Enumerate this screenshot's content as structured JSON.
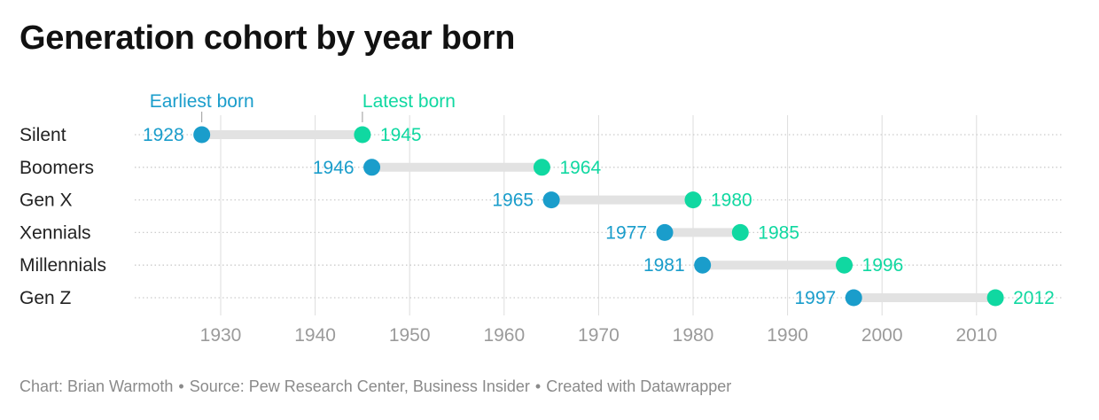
{
  "title": "Generation cohort by year born",
  "footer": {
    "chart_credit": "Chart: Brian Warmoth",
    "source": "Source: Pew Research Center, Business Insider",
    "created_with": "Created with Datawrapper",
    "separator": "•"
  },
  "colors": {
    "earliest": "#1a9dcb",
    "latest": "#10d8a1",
    "range_bar": "#e2e2e2",
    "grid": "#dddddd",
    "row_dots": "#cccccc",
    "axis_tick_text": "#9b9b9b",
    "row_label_text": "#222222"
  },
  "chart_data": {
    "type": "dot-range",
    "title": "Generation cohort by year born",
    "legend": {
      "earliest_label": "Earliest born",
      "latest_label": "Latest born",
      "placement": "top-left"
    },
    "xlim": [
      1921,
      2018
    ],
    "x_ticks": [
      1930,
      1940,
      1950,
      1960,
      1970,
      1980,
      1990,
      2000,
      2010
    ],
    "categories": [
      "Silent",
      "Boomers",
      "Gen X",
      "Xennials",
      "Millennials",
      "Gen Z"
    ],
    "series": [
      {
        "name": "Earliest born",
        "values": [
          1928,
          1946,
          1965,
          1977,
          1981,
          1997
        ]
      },
      {
        "name": "Latest born",
        "values": [
          1945,
          1964,
          1980,
          1985,
          1996,
          2012
        ]
      }
    ]
  }
}
